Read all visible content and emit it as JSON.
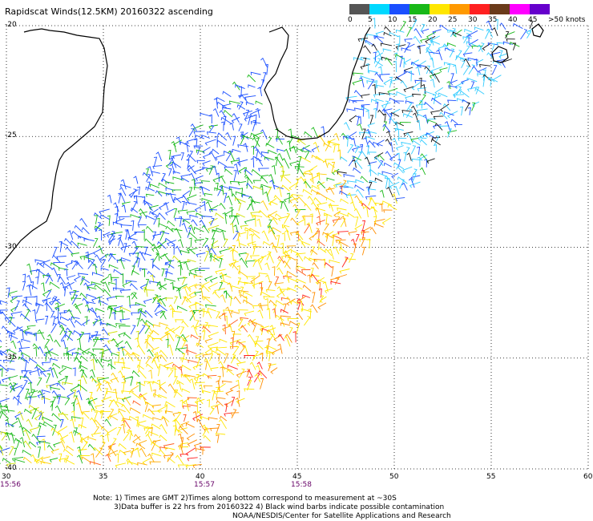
{
  "title": "Rapidscat Winds(12.5KM) 20160322 ascending",
  "legend": {
    "colors": [
      "#555555",
      "#00d8ff",
      "#1a4fff",
      "#18b818",
      "#ffe600",
      "#ff9900",
      "#ff2020",
      "#6a3a1a",
      "#ff00ff",
      "#6600cc"
    ],
    "ticks": [
      "0",
      "5",
      "10",
      "15",
      "20",
      "25",
      "30",
      "35",
      "40",
      "45",
      ">50 knots"
    ]
  },
  "lat_labels": [
    "-20",
    "-25",
    "-30",
    "-35",
    "-40"
  ],
  "lon_labels": [
    "30",
    "35",
    "40",
    "45",
    "50",
    "55",
    "60"
  ],
  "times": [
    "15:56",
    "15:57",
    "15:58"
  ],
  "notes": [
    "Note: 1) Times are GMT 2)Times along bottom correspond to measurement at ~30S",
    "3)Data buffer is 22 hrs from 20160322 4) Black wind barbs indicate possible contamination",
    "NOAA/NESDIS/Center for Satellite Applications and Research"
  ],
  "map": {
    "lon_range": [
      30,
      60
    ],
    "lat_range": [
      -40,
      -20
    ],
    "wind_field": "Rapidscat swath over the Mozambique Channel and south of Madagascar: blue/cyan 5-15 kt to the west, green 15-20 kt, yellow/orange 20-30 kt in the central band, cyan 5-10 kt east of Madagascar"
  }
}
